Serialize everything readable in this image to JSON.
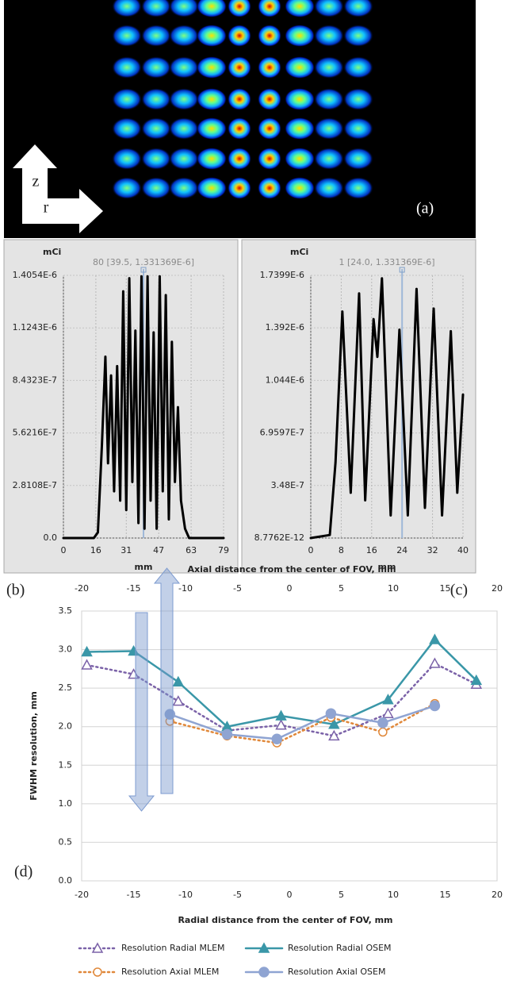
{
  "image": {
    "axis_labels": [
      "z",
      "r"
    ],
    "panel_label": "(a)"
  },
  "chart_data": [
    {
      "type": "line",
      "panel_label": "(b)",
      "unit_label": "mCi",
      "annotation": "80 [39.5, 1.331369E-6]",
      "cursor": 39.5,
      "x": [
        0,
        15,
        17,
        19,
        20.7,
        22,
        23.5,
        25,
        26.5,
        28,
        29.5,
        31,
        32.5,
        34,
        35.5,
        37,
        38.5,
        40,
        41.5,
        43,
        44.5,
        46,
        47.5,
        49,
        50.5,
        52,
        53.5,
        55,
        56.5,
        58,
        60,
        62,
        79
      ],
      "values": [
        0,
        0,
        3e-08,
        5e-07,
        9.7e-07,
        4e-07,
        8.7e-07,
        2.5e-07,
        9.2e-07,
        2e-07,
        1.32e-06,
        1.5e-07,
        1.39e-06,
        3e-07,
        1.11e-06,
        8e-08,
        1.4e-06,
        5e-08,
        1.4e-06,
        2e-07,
        1.1e-06,
        5e-08,
        1.4e-06,
        2.5e-07,
        1.3e-06,
        1e-07,
        1.05e-06,
        3e-07,
        7e-07,
        2e-07,
        5e-08,
        0,
        0
      ],
      "color": "#000000",
      "grid": true,
      "xlabel": "mm",
      "xlim": [
        0,
        79
      ],
      "xticks": [
        0,
        16,
        31,
        47,
        63,
        79
      ],
      "ylim": [
        0,
        1.4054e-06
      ],
      "yticks": [
        {
          "value": 0,
          "label": "0.0"
        },
        {
          "value": 2.8108e-07,
          "label": "2.8108E-7"
        },
        {
          "value": 5.6216e-07,
          "label": "5.6216E-7"
        },
        {
          "value": 8.4323e-07,
          "label": "8.4323E-7"
        },
        {
          "value": 1.1243e-06,
          "label": "1.1243E-6"
        },
        {
          "value": 1.4054e-06,
          "label": "1.4054E-6"
        }
      ]
    },
    {
      "type": "line",
      "panel_label": "(c)",
      "unit_label": "mCi",
      "annotation": "1 [24.0, 1.331369E-6]",
      "cursor": 24,
      "x": [
        0,
        5,
        6.5,
        8.3,
        10.5,
        12.7,
        14.3,
        16.5,
        17.5,
        18.7,
        21,
        23.3,
        25.5,
        27.8,
        30,
        32.3,
        34.5,
        36.8,
        38.5,
        40
      ],
      "values": [
        0,
        2e-08,
        5e-07,
        1.5e-06,
        3e-07,
        1.62e-06,
        2.5e-07,
        1.45e-06,
        1.2e-06,
        1.72e-06,
        1.5e-07,
        1.38e-06,
        1.5e-07,
        1.65e-06,
        2e-07,
        1.52e-06,
        1.5e-07,
        1.37e-06,
        3e-07,
        9.5e-07
      ],
      "color": "#000000",
      "grid": true,
      "xlabel": "mm",
      "xlim": [
        0,
        40
      ],
      "xticks": [
        0,
        8,
        16,
        24,
        32,
        40
      ],
      "ylim": [
        8.7762e-12,
        1.7399e-06
      ],
      "yticks": [
        {
          "value": 8.7762e-12,
          "label": "8.7762E-12"
        },
        {
          "value": 3.48e-07,
          "label": "3.48E-7"
        },
        {
          "value": 6.9597e-07,
          "label": "6.9597E-7"
        },
        {
          "value": 1.044e-06,
          "label": "1.044E-6"
        },
        {
          "value": 1.392e-06,
          "label": "1.392E-6"
        },
        {
          "value": 1.7399e-06,
          "label": "1.7399E-6"
        }
      ]
    },
    {
      "type": "line",
      "panel_label": "(d)",
      "grid": true,
      "xlabel": "Radial distance  from the center of FOV, mm",
      "x2label": "Axial distance  from the center of FOV, mm",
      "ylabel": "FWHM resolution, mm",
      "xlim": [
        -20,
        20
      ],
      "xticks": [
        -20,
        -15,
        -10,
        -5,
        0,
        5,
        10,
        15,
        20
      ],
      "x2lim": [
        -20,
        20
      ],
      "x2ticks": [
        -20,
        -15,
        -10,
        -5,
        0,
        5,
        10,
        15,
        20
      ],
      "ylim": [
        0,
        3.5
      ],
      "yticks": [
        {
          "value": 0,
          "label": "0.0"
        },
        0.5,
        {
          "value": 1,
          "label": "1.0"
        },
        1.5,
        {
          "value": 2,
          "label": "2.0"
        },
        2.5,
        {
          "value": 3,
          "label": "3.0"
        },
        3.5
      ],
      "series": [
        {
          "name": "Resolution Radial MLEM",
          "color": "#7b62a8",
          "dashed": true,
          "marker": "triangle-open",
          "x": [
            -19.5,
            -15,
            -10.7,
            -6,
            -0.8,
            4.3,
            9.5,
            14,
            18
          ],
          "values": [
            2.8,
            2.68,
            2.33,
            1.95,
            2.02,
            1.88,
            2.17,
            2.82,
            2.55
          ]
        },
        {
          "name": "Resolution Radial OSEM",
          "color": "#3a97a8",
          "dashed": false,
          "marker": "triangle",
          "x": [
            -19.5,
            -15,
            -10.7,
            -6,
            -0.8,
            4.3,
            9.5,
            14,
            18
          ],
          "values": [
            2.97,
            2.98,
            2.58,
            2.0,
            2.14,
            2.03,
            2.35,
            3.13,
            2.6
          ]
        },
        {
          "name": "Resolution Axial MLEM",
          "color": "#e0883a",
          "dashed": true,
          "marker": "circle-open",
          "x": [
            -11.5,
            -6,
            -1.2,
            4,
            9,
            14
          ],
          "values": [
            2.07,
            1.88,
            1.79,
            2.12,
            1.93,
            2.3
          ]
        },
        {
          "name": "Resolution Axial OSEM",
          "color": "#8fa4d2",
          "dashed": false,
          "marker": "circle",
          "x": [
            -11.5,
            -6,
            -1.2,
            4,
            9,
            14
          ],
          "values": [
            2.16,
            1.9,
            1.84,
            2.17,
            2.05,
            2.27
          ]
        }
      ]
    }
  ]
}
